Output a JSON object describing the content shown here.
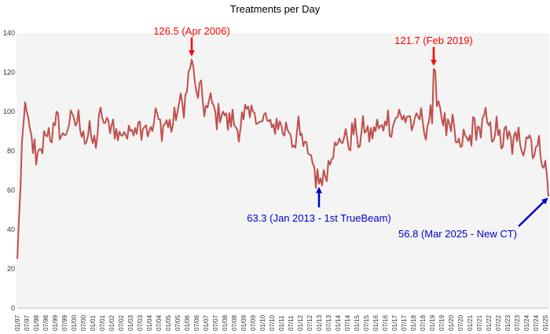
{
  "chart_data": {
    "type": "line",
    "title": "Treatments per Day",
    "xlabel": "",
    "ylabel": "",
    "ylim": [
      0,
      140
    ],
    "yticks": [
      0,
      20,
      40,
      60,
      80,
      100,
      120,
      140
    ],
    "grid": "vertical lines at each month",
    "legend": "none",
    "x_start": "01/97",
    "x_end": "03/25",
    "xtick_labels": [
      "01/97",
      "07/97",
      "01/98",
      "07/98",
      "01/99",
      "07/99",
      "01/00",
      "07/00",
      "01/01",
      "07/01",
      "01/02",
      "07/02",
      "01/03",
      "07/03",
      "01/04",
      "07/04",
      "01/05",
      "07/05",
      "01/06",
      "07/06",
      "01/07",
      "07/07",
      "01/08",
      "07/08",
      "01/09",
      "07/09",
      "01/10",
      "07/10",
      "01/11",
      "07/11",
      "01/12",
      "07/12",
      "01/13",
      "07/13",
      "01/14",
      "07/14",
      "01/15",
      "07/15",
      "01/16",
      "07/16",
      "01/17",
      "07/17",
      "01/18",
      "07/18",
      "01/19",
      "07/19",
      "01/20",
      "07/20",
      "01/21",
      "07/21",
      "01/22",
      "07/22",
      "01/23",
      "07/23",
      "01/24",
      "07/24",
      "01/25"
    ],
    "series": [
      {
        "color": "#c0504d",
        "anchors": [
          [
            "01/97",
            25
          ],
          [
            "04/97",
            85
          ],
          [
            "07/97",
            100
          ],
          [
            "10/97",
            88
          ],
          [
            "01/98",
            73
          ],
          [
            "07/98",
            88
          ],
          [
            "01/99",
            93
          ],
          [
            "07/99",
            88
          ],
          [
            "01/00",
            97
          ],
          [
            "07/00",
            90
          ],
          [
            "01/01",
            84
          ],
          [
            "07/01",
            97
          ],
          [
            "01/02",
            93
          ],
          [
            "07/02",
            88
          ],
          [
            "01/03",
            90
          ],
          [
            "07/03",
            95
          ],
          [
            "01/04",
            90
          ],
          [
            "07/04",
            96
          ],
          [
            "01/05",
            92
          ],
          [
            "07/05",
            100
          ],
          [
            "01/06",
            110
          ],
          [
            "04/06",
            126.5
          ],
          [
            "07/06",
            110
          ],
          [
            "01/07",
            103
          ],
          [
            "07/07",
            100
          ],
          [
            "01/08",
            98
          ],
          [
            "07/08",
            93
          ],
          [
            "01/09",
            96
          ],
          [
            "07/09",
            100
          ],
          [
            "01/10",
            95
          ],
          [
            "07/10",
            92
          ],
          [
            "01/11",
            93
          ],
          [
            "07/11",
            88
          ],
          [
            "01/12",
            88
          ],
          [
            "07/12",
            78
          ],
          [
            "10/12",
            72
          ],
          [
            "01/13",
            63.3
          ],
          [
            "07/13",
            75
          ],
          [
            "01/14",
            84
          ],
          [
            "07/14",
            86
          ],
          [
            "01/15",
            88
          ],
          [
            "07/15",
            90
          ],
          [
            "01/16",
            90
          ],
          [
            "07/16",
            95
          ],
          [
            "01/17",
            95
          ],
          [
            "07/17",
            98
          ],
          [
            "01/18",
            93
          ],
          [
            "07/18",
            95
          ],
          [
            "01/19",
            94
          ],
          [
            "02/19",
            121.7
          ],
          [
            "07/19",
            97
          ],
          [
            "01/20",
            90
          ],
          [
            "07/20",
            82
          ],
          [
            "01/21",
            88
          ],
          [
            "07/21",
            92
          ],
          [
            "01/22",
            93
          ],
          [
            "07/22",
            88
          ],
          [
            "01/23",
            86
          ],
          [
            "07/23",
            85
          ],
          [
            "01/24",
            87
          ],
          [
            "07/24",
            82
          ],
          [
            "01/25",
            75
          ],
          [
            "03/25",
            56.8
          ]
        ]
      }
    ],
    "annotations": [
      {
        "text": "126.5 (Apr 2006)",
        "x": "04/06",
        "y": 126.5,
        "color": "#ff0000"
      },
      {
        "text": "121.7 (Feb 2019)",
        "x": "02/19",
        "y": 121.7,
        "color": "#ff0000"
      },
      {
        "text": "63.3 (Jan 2013 - 1st TrueBeam)",
        "x": "01/13",
        "y": 63.3,
        "color": "#0000cc"
      },
      {
        "text": "56.8 (Mar 2025 - New CT)",
        "x": "03/25",
        "y": 56.8,
        "color": "#0000cc"
      }
    ]
  }
}
